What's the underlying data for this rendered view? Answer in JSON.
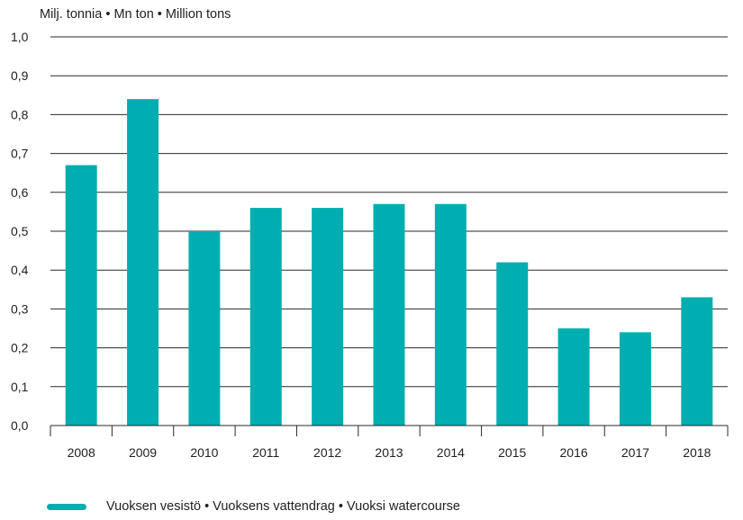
{
  "chart_data": {
    "type": "bar",
    "title": "",
    "unit_label": "Milj. tonnia  •  Mn ton  •  Million tons",
    "xlabel": "",
    "ylabel": "",
    "categories": [
      "2008",
      "2009",
      "2010",
      "2011",
      "2012",
      "2013",
      "2014",
      "2015",
      "2016",
      "2017",
      "2018"
    ],
    "series": [
      {
        "name": "Vuoksen vesistö • Vuoksens vattendrag • Vuoksi watercourse",
        "values": [
          0.67,
          0.84,
          0.5,
          0.56,
          0.56,
          0.57,
          0.57,
          0.42,
          0.25,
          0.24,
          0.33
        ],
        "color": "#00aeb1"
      }
    ],
    "ylim": [
      0,
      1.0
    ],
    "yticks": [
      "0,0",
      "0,1",
      "0,2",
      "0,3",
      "0,4",
      "0,5",
      "0,6",
      "0,7",
      "0,8",
      "0,9",
      "1,0"
    ],
    "grid": true,
    "legend_position": "bottom-left"
  }
}
